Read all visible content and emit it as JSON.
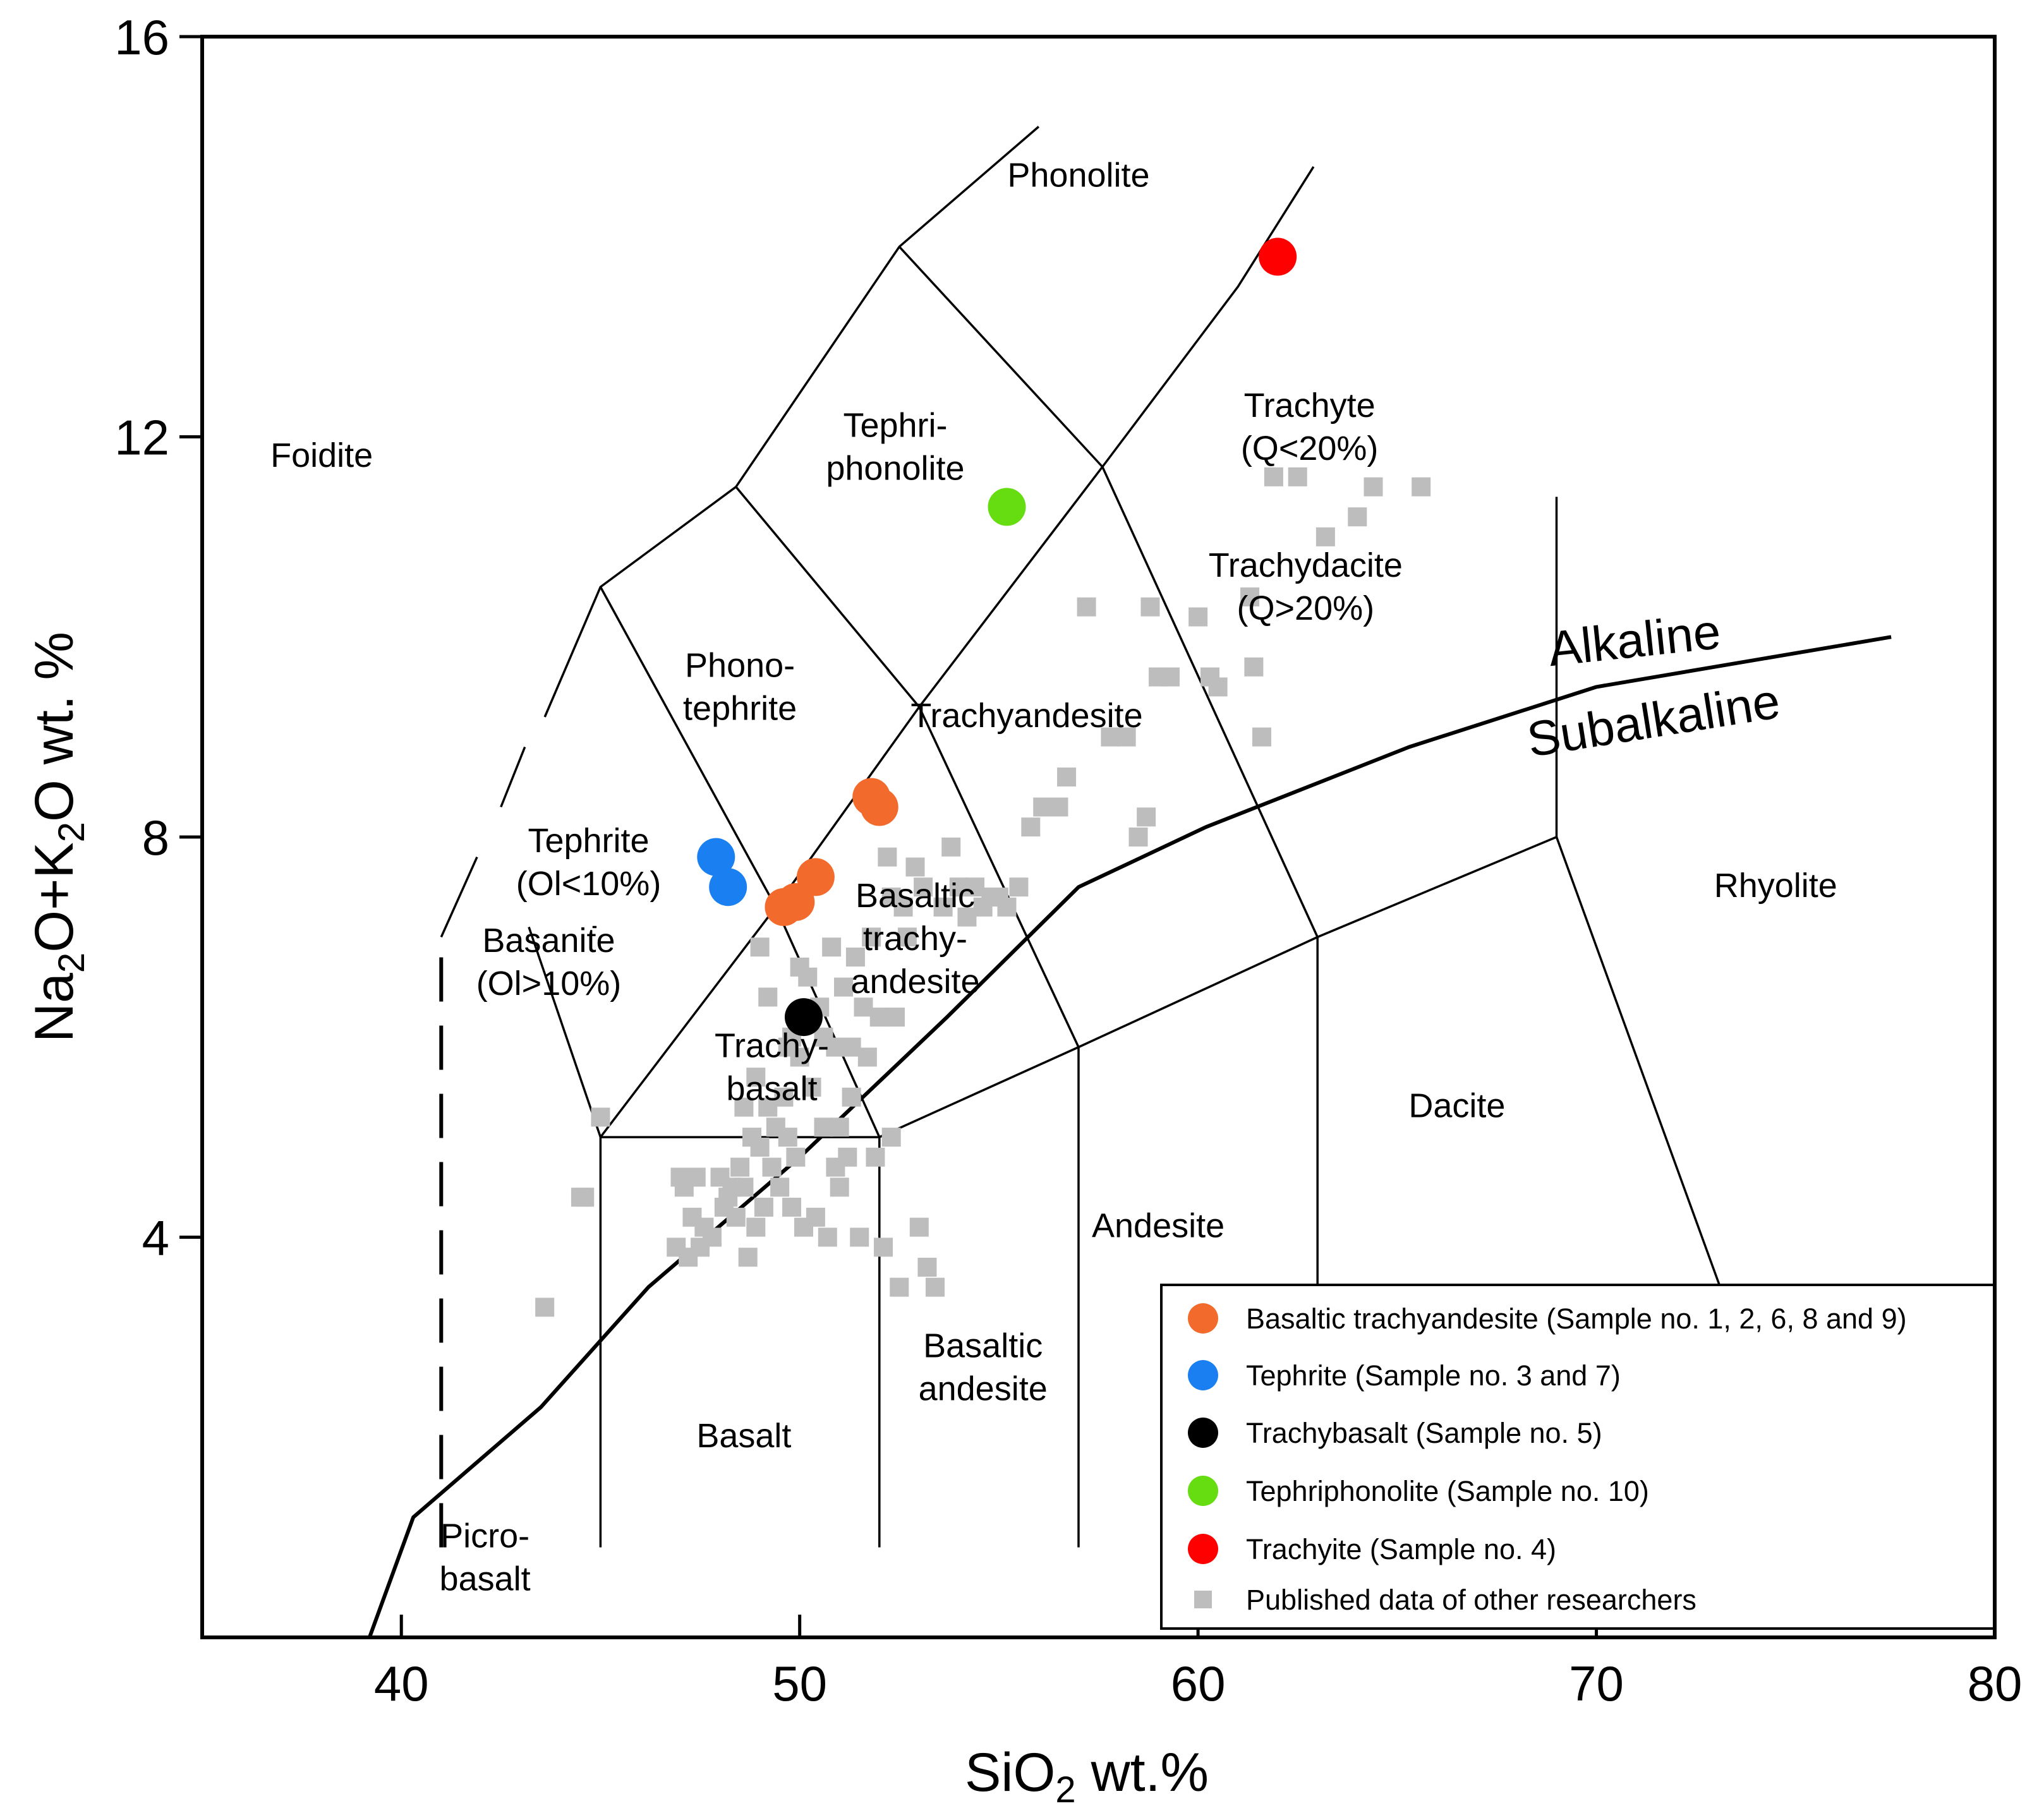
{
  "chart_data": {
    "type": "scatter",
    "title": "",
    "xlabel": {
      "main": "SiO",
      "sub": "2",
      "rest": " wt.%"
    },
    "ylabel": {
      "a": "Na",
      "a_sub": "2",
      "b": "O+K",
      "b_sub": "2",
      "c": "O wt. %"
    },
    "xlim": [
      35,
      80
    ],
    "ylim": [
      0,
      16
    ],
    "xticks": [
      {
        "value": 40,
        "label": "40"
      },
      {
        "value": 50,
        "label": "50"
      },
      {
        "value": 60,
        "label": "60"
      },
      {
        "value": 70,
        "label": "70"
      },
      {
        "value": 80,
        "label": "80"
      }
    ],
    "yticks": [
      {
        "value": 4,
        "label": "4"
      },
      {
        "value": 8,
        "label": "8"
      },
      {
        "value": 12,
        "label": "12"
      },
      {
        "value": 16,
        "label": "16"
      }
    ],
    "fields": [
      {
        "lines": [
          "Phonolite"
        ],
        "x": 57.0,
        "y": 14.5
      },
      {
        "lines": [
          "Foidite"
        ],
        "x": 38.0,
        "y": 11.7
      },
      {
        "lines": [
          "Tephri-",
          "phonolite"
        ],
        "x": 52.4,
        "y": 12.0
      },
      {
        "lines": [
          "Phono-",
          "tephrite"
        ],
        "x": 48.5,
        "y": 9.6
      },
      {
        "lines": [
          "Tephrite",
          "(Ol<10%)"
        ],
        "x": 44.7,
        "y": 7.85
      },
      {
        "lines": [
          "Basanite",
          "(Ol>10%)"
        ],
        "x": 43.7,
        "y": 6.85
      },
      {
        "lines": [
          "Trachy-",
          "basalt"
        ],
        "x": 49.3,
        "y": 5.8
      },
      {
        "lines": [
          "Basaltic",
          "trachy-",
          "andesite"
        ],
        "x": 52.9,
        "y": 7.3
      },
      {
        "lines": [
          "Trachyandesite"
        ],
        "x": 55.7,
        "y": 9.1
      },
      {
        "lines": [
          "Trachyte",
          "(Q<20%)"
        ],
        "x": 62.8,
        "y": 12.2
      },
      {
        "lines": [
          "Trachydacite",
          "(Q>20%)"
        ],
        "x": 62.7,
        "y": 10.6
      },
      {
        "lines": [
          "Rhyolite"
        ],
        "x": 74.5,
        "y": 7.4
      },
      {
        "lines": [
          "Dacite"
        ],
        "x": 66.5,
        "y": 5.2
      },
      {
        "lines": [
          "Andesite"
        ],
        "x": 59.0,
        "y": 4.0
      },
      {
        "lines": [
          "Basaltic",
          "andesite"
        ],
        "x": 54.6,
        "y": 2.8
      },
      {
        "lines": [
          "Basalt"
        ],
        "x": 48.6,
        "y": 1.9
      },
      {
        "lines": [
          "Picro-",
          "basalt"
        ],
        "x": 42.1,
        "y": 0.9
      }
    ],
    "trend_labels": [
      {
        "text": "Alkaline",
        "x": 71.0,
        "y": 9.8,
        "angle": -6
      },
      {
        "text": "Subalkaline",
        "x": 71.5,
        "y": 9.0,
        "angle": -9
      }
    ],
    "boundaries": [
      {
        "solid": true,
        "points": [
          [
            45,
            0.9
          ],
          [
            45,
            5
          ],
          [
            52,
            5
          ],
          [
            52,
            0.9
          ]
        ]
      },
      {
        "solid": true,
        "points": [
          [
            57,
            0.9
          ],
          [
            57,
            5.9
          ]
        ]
      },
      {
        "solid": true,
        "points": [
          [
            63,
            0.9
          ],
          [
            63,
            7
          ]
        ]
      },
      {
        "solid": true,
        "points": [
          [
            45,
            5
          ],
          [
            49.4,
            7.3
          ],
          [
            53,
            9.3
          ],
          [
            57.6,
            11.7
          ],
          [
            61,
            13.5
          ],
          [
            62.9,
            14.7
          ]
        ]
      },
      {
        "solid": true,
        "points": [
          [
            52,
            5
          ],
          [
            57,
            5.9
          ],
          [
            63,
            7
          ],
          [
            69,
            8
          ]
        ]
      },
      {
        "solid": true,
        "points": [
          [
            49.4,
            7.3
          ],
          [
            52,
            5
          ]
        ]
      },
      {
        "solid": true,
        "points": [
          [
            53,
            9.3
          ],
          [
            57,
            5.9
          ]
        ]
      },
      {
        "solid": true,
        "points": [
          [
            57.6,
            11.7
          ],
          [
            63,
            7
          ]
        ]
      },
      {
        "solid": true,
        "points": [
          [
            69,
            8
          ],
          [
            69,
            11.4
          ]
        ]
      },
      {
        "solid": true,
        "points": [
          [
            69,
            8
          ],
          [
            73.2,
            3.4
          ]
        ]
      },
      {
        "solid": true,
        "points": [
          [
            45,
            5
          ],
          [
            43.2,
            7.1
          ]
        ]
      },
      {
        "solid": true,
        "points": [
          [
            44.8,
            7.1
          ],
          [
            44.9,
            7.1
          ]
        ]
      },
      {
        "solid": true,
        "points": [
          [
            41,
            7
          ],
          [
            41.9,
            7.8
          ]
        ]
      },
      {
        "solid": true,
        "points": [
          [
            42.5,
            8.3
          ],
          [
            43.1,
            8.9
          ]
        ]
      },
      {
        "solid": true,
        "points": [
          [
            43.6,
            9.2
          ],
          [
            45,
            10.5
          ],
          [
            48.4,
            11.5
          ],
          [
            52.5,
            13.9
          ],
          [
            56,
            15.1
          ]
        ]
      },
      {
        "solid": true,
        "points": [
          [
            45,
            10.5
          ],
          [
            49.4,
            7.3
          ]
        ]
      },
      {
        "solid": true,
        "points": [
          [
            48.4,
            11.5
          ],
          [
            53,
            9.3
          ]
        ]
      },
      {
        "solid": true,
        "points": [
          [
            52.5,
            13.9
          ],
          [
            57.6,
            11.7
          ]
        ]
      },
      {
        "solid": false,
        "points": [
          [
            41,
            0.9
          ],
          [
            41,
            7
          ]
        ]
      },
      {
        "solid": true,
        "points": [
          [
            39.2,
            0
          ],
          [
            40.3,
            1.2
          ],
          [
            43.5,
            2.3
          ],
          [
            46.2,
            3.5
          ],
          [
            50,
            4.8
          ],
          [
            53.7,
            6.2
          ],
          [
            57,
            7.5
          ],
          [
            60.2,
            8.1
          ],
          [
            65.3,
            8.9
          ],
          [
            70,
            9.5
          ],
          [
            77.4,
            10
          ]
        ]
      }
    ],
    "series": [
      {
        "name": "Basaltic trachyandesite (Sample no. 1, 2, 6, 8 and 9)",
        "marker": "circle",
        "color": "#f26b2d",
        "points": [
          [
            51.8,
            8.4
          ],
          [
            52.0,
            8.3
          ],
          [
            50.4,
            7.6
          ],
          [
            49.9,
            7.35
          ],
          [
            49.6,
            7.3
          ]
        ]
      },
      {
        "name": "Tephrite (Sample no. 3 and 7)",
        "marker": "circle",
        "color": "#1a7ff0",
        "points": [
          [
            47.9,
            7.8
          ],
          [
            48.2,
            7.5
          ]
        ]
      },
      {
        "name": "Trachybasalt (Sample no. 5)",
        "marker": "circle",
        "color": "#000000",
        "points": [
          [
            50.1,
            6.2
          ]
        ]
      },
      {
        "name": "Tephriphonolite (Sample no. 10)",
        "marker": "circle",
        "color": "#66dd11",
        "points": [
          [
            55.2,
            11.3
          ]
        ]
      },
      {
        "name": "Trachyite (Sample no. 4)",
        "marker": "circle",
        "color": "#ff0000",
        "points": [
          [
            62.0,
            13.8
          ]
        ]
      },
      {
        "name": "Published data of other researchers",
        "marker": "square",
        "color": "#bdbdbd",
        "points": [
          [
            43.6,
            3.3
          ],
          [
            44.5,
            4.4
          ],
          [
            44.6,
            4.4
          ],
          [
            45.0,
            5.2
          ],
          [
            46.9,
            3.9
          ],
          [
            47.0,
            4.6
          ],
          [
            47.1,
            4.5
          ],
          [
            47.2,
            3.8
          ],
          [
            47.4,
            4.6
          ],
          [
            47.5,
            3.9
          ],
          [
            47.6,
            4.1
          ],
          [
            47.8,
            4.0
          ],
          [
            48.0,
            4.6
          ],
          [
            48.1,
            4.3
          ],
          [
            48.2,
            4.4
          ],
          [
            48.3,
            4.5
          ],
          [
            48.4,
            4.2
          ],
          [
            48.5,
            4.7
          ],
          [
            48.6,
            4.5
          ],
          [
            48.7,
            3.8
          ],
          [
            48.8,
            5.0
          ],
          [
            48.9,
            5.6
          ],
          [
            49.0,
            4.9
          ],
          [
            49.1,
            4.3
          ],
          [
            49.2,
            5.3
          ],
          [
            49.3,
            4.7
          ],
          [
            49.4,
            5.1
          ],
          [
            49.5,
            4.5
          ],
          [
            49.6,
            5.4
          ],
          [
            49.7,
            5.0
          ],
          [
            49.8,
            6.0
          ],
          [
            49.9,
            4.8
          ],
          [
            50.0,
            5.8
          ],
          [
            50.1,
            4.1
          ],
          [
            50.2,
            6.6
          ],
          [
            50.3,
            5.5
          ],
          [
            50.4,
            4.2
          ],
          [
            50.5,
            6.3
          ],
          [
            50.6,
            5.1
          ],
          [
            50.7,
            4.0
          ],
          [
            50.8,
            6.9
          ],
          [
            50.9,
            5.9
          ],
          [
            51.0,
            4.5
          ],
          [
            51.1,
            6.5
          ],
          [
            51.2,
            4.8
          ],
          [
            51.3,
            5.4
          ],
          [
            51.4,
            6.8
          ],
          [
            51.5,
            4.0
          ],
          [
            51.6,
            6.3
          ],
          [
            51.7,
            5.8
          ],
          [
            51.8,
            7.0
          ],
          [
            51.9,
            4.8
          ],
          [
            52.0,
            6.2
          ],
          [
            52.1,
            3.9
          ],
          [
            52.2,
            7.8
          ],
          [
            52.3,
            7.4
          ],
          [
            52.4,
            6.2
          ],
          [
            52.5,
            3.5
          ],
          [
            52.6,
            7.3
          ],
          [
            52.7,
            7.0
          ],
          [
            52.9,
            7.7
          ],
          [
            53.0,
            4.1
          ],
          [
            53.1,
            7.5
          ],
          [
            53.2,
            3.7
          ],
          [
            53.4,
            3.5
          ],
          [
            53.6,
            7.3
          ],
          [
            53.8,
            7.9
          ],
          [
            54.0,
            7.5
          ],
          [
            54.2,
            7.2
          ],
          [
            54.4,
            7.5
          ],
          [
            54.6,
            7.3
          ],
          [
            54.8,
            7.4
          ],
          [
            55.0,
            7.4
          ],
          [
            55.2,
            7.3
          ],
          [
            55.5,
            7.5
          ],
          [
            55.8,
            8.1
          ],
          [
            56.1,
            8.3
          ],
          [
            56.5,
            8.3
          ],
          [
            56.7,
            8.6
          ],
          [
            57.2,
            10.3
          ],
          [
            57.8,
            9.0
          ],
          [
            58.2,
            9.0
          ],
          [
            58.5,
            8.0
          ],
          [
            58.7,
            8.2
          ],
          [
            58.8,
            10.3
          ],
          [
            59.0,
            9.6
          ],
          [
            59.3,
            9.6
          ],
          [
            60.0,
            10.2
          ],
          [
            60.3,
            9.6
          ],
          [
            60.5,
            9.5
          ],
          [
            61.3,
            10.4
          ],
          [
            61.4,
            9.7
          ],
          [
            61.6,
            9.0
          ],
          [
            61.9,
            11.6
          ],
          [
            62.5,
            11.6
          ],
          [
            63.2,
            11.0
          ],
          [
            64.0,
            11.2
          ],
          [
            64.4,
            11.5
          ],
          [
            65.6,
            11.5
          ],
          [
            49.2,
            6.4
          ],
          [
            49.7,
            5.9
          ],
          [
            48.6,
            5.3
          ],
          [
            51.0,
            5.1
          ],
          [
            50.6,
            6.0
          ],
          [
            52.3,
            5.0
          ],
          [
            47.3,
            4.2
          ],
          [
            48.9,
            4.1
          ],
          [
            49.8,
            4.3
          ],
          [
            50.9,
            4.7
          ],
          [
            49.0,
            6.9
          ],
          [
            50.0,
            6.7
          ],
          [
            51.3,
            5.9
          ]
        ]
      }
    ],
    "legend": {
      "placement": "bottom-right",
      "entries": [
        "Basaltic trachyandesite (Sample no. 1, 2, 6, 8 and 9)",
        "Tephrite (Sample no. 3 and 7)",
        "Trachybasalt (Sample no. 5)",
        "Tephriphonolite (Sample no. 10)",
        "Trachyite (Sample no. 4)",
        "Published data of other researchers"
      ]
    }
  }
}
